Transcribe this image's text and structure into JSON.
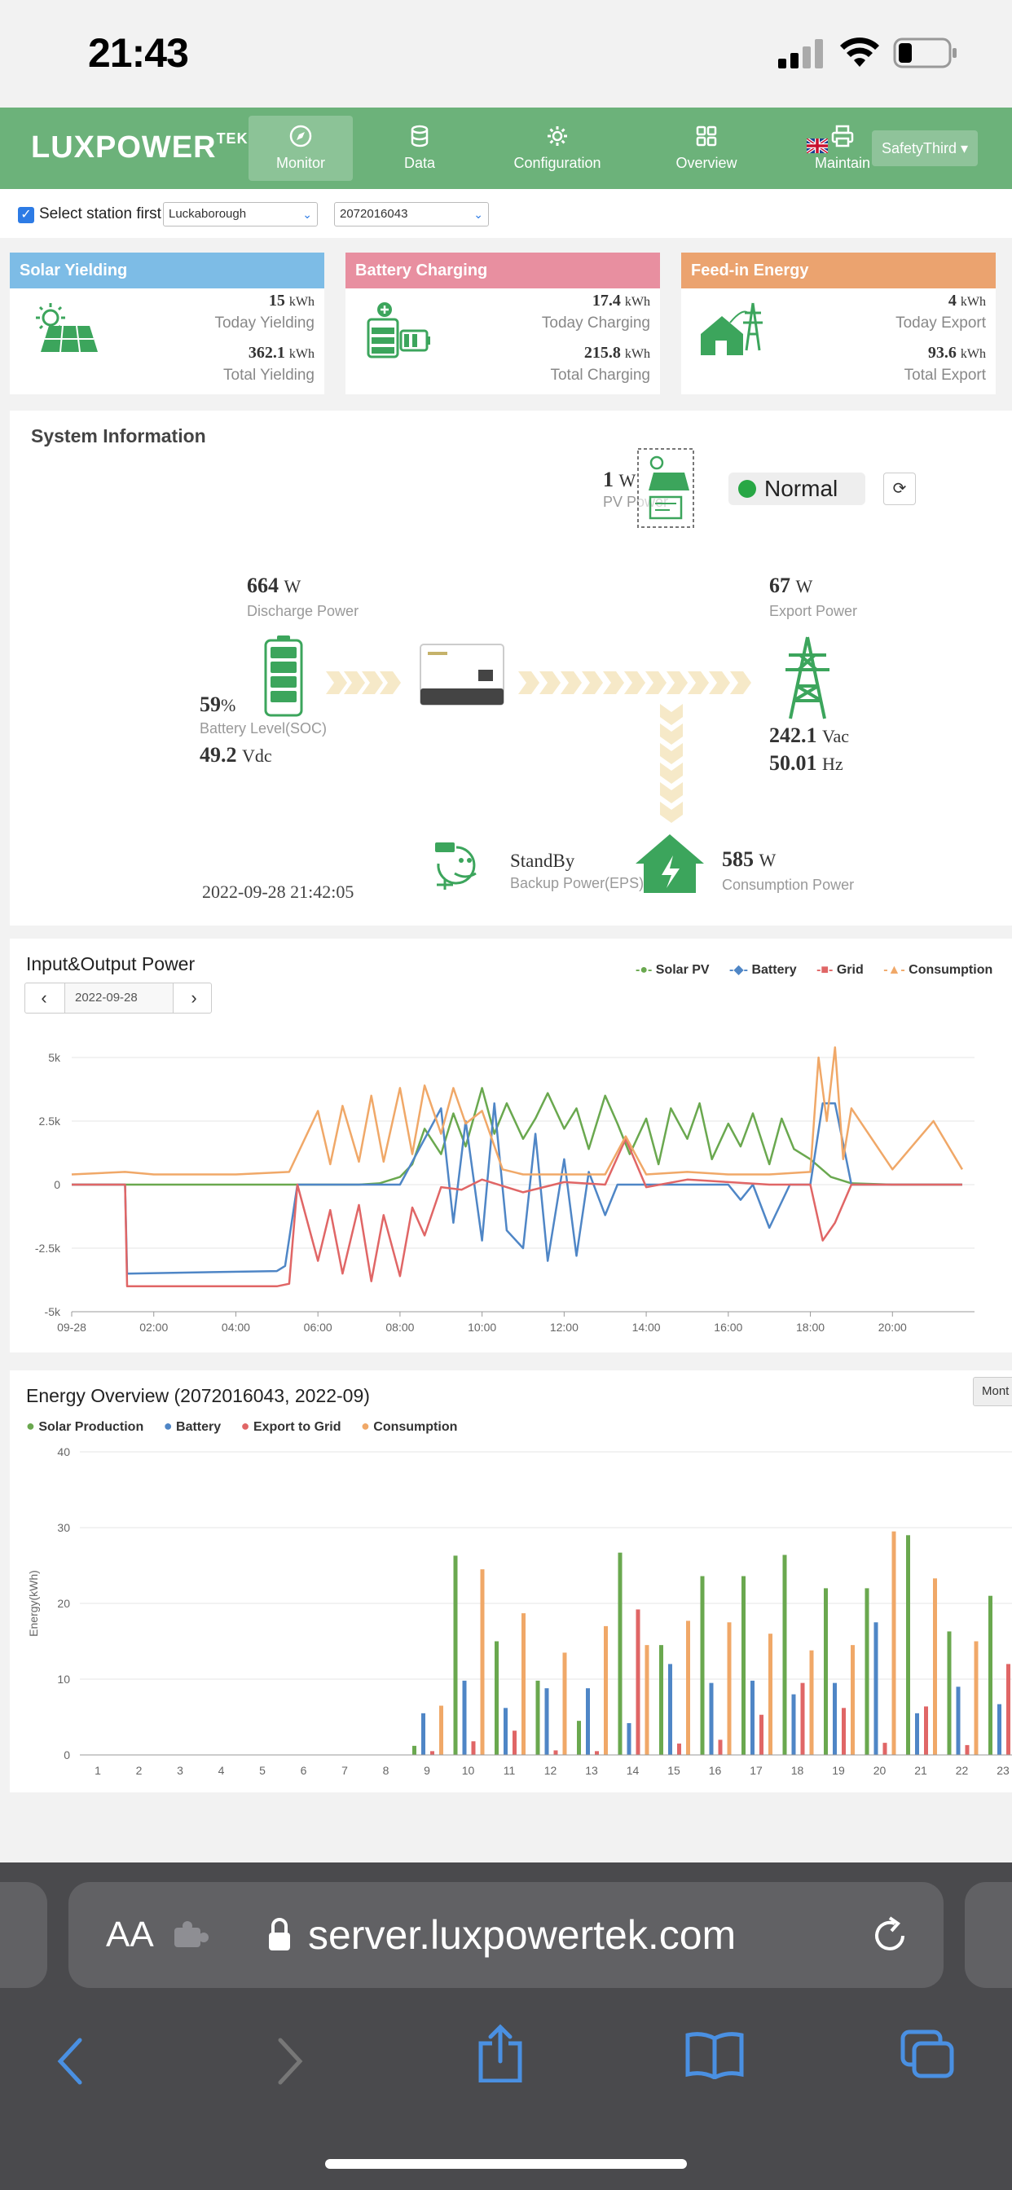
{
  "status_bar": {
    "time": "21:43"
  },
  "nav": {
    "logo": "LUXPOWER",
    "logo_sup": "TEK",
    "items": [
      {
        "label": "Monitor",
        "icon": "compass-icon"
      },
      {
        "label": "Data",
        "icon": "database-icon"
      },
      {
        "label": "Configuration",
        "icon": "gear-icon"
      },
      {
        "label": "Overview",
        "icon": "grid-icon"
      },
      {
        "label": "Maintain",
        "icon": "printer-icon"
      }
    ],
    "user": "SafetyThird"
  },
  "station": {
    "checkbox_label": "Select station first",
    "station_name": "Luckaborough",
    "serial": "2072016043"
  },
  "cards": {
    "solar": {
      "title": "Solar Yielding",
      "today_value": "15",
      "today_unit": "kWh",
      "today_label": "Today Yielding",
      "total_value": "362.1",
      "total_unit": "kWh",
      "total_label": "Total Yielding",
      "color": "#7dbce6"
    },
    "battery": {
      "title": "Battery Charging",
      "today_value": "17.4",
      "today_unit": "kWh",
      "today_label": "Today Charging",
      "total_value": "215.8",
      "total_unit": "kWh",
      "total_label": "Total Charging",
      "color": "#e88fa0"
    },
    "feedin": {
      "title": "Feed-in Energy",
      "today_value": "4",
      "today_unit": "kWh",
      "today_label": "Today Export",
      "total_value": "93.6",
      "total_unit": "kWh",
      "total_label": "Total Export",
      "color": "#eba36f"
    }
  },
  "system": {
    "title": "System Information",
    "pv_power_value": "1",
    "pv_power_unit": "W",
    "pv_power_label": "PV Power",
    "status": "Normal",
    "discharge_value": "664",
    "discharge_unit": "W",
    "discharge_label": "Discharge Power",
    "soc_value": "59",
    "soc_unit": "%",
    "soc_label": "Battery Level(SOC)",
    "vdc_value": "49.2",
    "vdc_unit": "Vdc",
    "export_value": "67",
    "export_unit": "W",
    "export_label": "Export Power",
    "vac_value": "242.1",
    "vac_unit": "Vac",
    "hz_value": "50.01",
    "hz_unit": "Hz",
    "eps_status": "StandBy",
    "eps_label": "Backup Power(EPS)",
    "consumption_value": "585",
    "consumption_unit": "W",
    "consumption_label": "Consumption Power",
    "timestamp": "2022-09-28 21:42:05"
  },
  "power_chart": {
    "title": "Input&Output Power",
    "date": "2022-09-28",
    "legend": [
      "Solar PV",
      "Battery",
      "Grid",
      "Consumption"
    ]
  },
  "energy_chart": {
    "title": "Energy Overview (2072016043, 2022-09)",
    "button": "Mont",
    "legend": [
      "Solar Production",
      "Battery",
      "Export to Grid",
      "Consumption"
    ]
  },
  "chart_data": [
    {
      "type": "line",
      "y_ticks": [
        "5k",
        "2.5k",
        "0",
        "-2.5k",
        "-5k"
      ],
      "x_ticks": [
        "09-28",
        "02:00",
        "04:00",
        "06:00",
        "08:00",
        "10:00",
        "12:00",
        "14:00",
        "16:00",
        "18:00",
        "20:00"
      ],
      "ylim": [
        -5000,
        5000
      ],
      "xlim": [
        0,
        22
      ],
      "series": [
        {
          "name": "Solar PV",
          "color": "#6aa84f",
          "x": [
            0,
            7,
            7.5,
            8,
            8.3,
            8.6,
            9,
            9.3,
            9.6,
            10,
            10.3,
            10.6,
            11,
            11.3,
            11.6,
            12,
            12.3,
            12.6,
            13,
            13.3,
            13.6,
            14,
            14.3,
            14.6,
            15,
            15.3,
            15.6,
            16,
            16.3,
            16.6,
            17,
            17.3,
            17.6,
            18,
            18.5,
            19,
            20,
            21,
            21.7
          ],
          "y": [
            0,
            0,
            50,
            300,
            800,
            2200,
            1200,
            2800,
            1500,
            3800,
            2000,
            3200,
            1800,
            2600,
            3600,
            2200,
            3000,
            1400,
            3500,
            2400,
            1200,
            2600,
            800,
            3000,
            1800,
            3200,
            1000,
            2400,
            1500,
            2800,
            800,
            2600,
            1400,
            1000,
            300,
            50,
            0,
            0,
            0
          ]
        },
        {
          "name": "Battery",
          "color": "#4f86c6",
          "x": [
            0,
            1.3,
            1.35,
            5,
            5.2,
            5.5,
            7.5,
            8,
            8.5,
            9,
            9.3,
            9.6,
            10,
            10.3,
            10.6,
            11,
            11.3,
            11.6,
            12,
            12.3,
            12.6,
            13,
            13.3,
            14,
            15,
            16,
            16.3,
            16.6,
            17,
            17.5,
            18,
            18.3,
            18.6,
            19,
            20,
            21,
            21.7
          ],
          "y": [
            0,
            0,
            -3500,
            -3400,
            -3200,
            0,
            0,
            0,
            1500,
            3000,
            -1500,
            2500,
            -2200,
            3200,
            -1800,
            -2500,
            2000,
            -3000,
            1000,
            -2800,
            500,
            -1200,
            0,
            0,
            0,
            0,
            -600,
            0,
            -1700,
            0,
            0,
            3200,
            3200,
            0,
            0,
            0,
            0
          ]
        },
        {
          "name": "Grid",
          "color": "#e06666",
          "x": [
            0,
            1.3,
            1.35,
            5,
            5.3,
            5.5,
            6,
            6.3,
            6.6,
            7,
            7.3,
            7.6,
            8,
            8.3,
            8.6,
            9,
            9.5,
            10,
            11,
            12,
            13,
            13.5,
            14,
            15,
            16,
            17,
            18,
            18.3,
            18.6,
            19,
            20,
            21,
            21.7
          ],
          "y": [
            0,
            0,
            -4000,
            -4000,
            -3900,
            0,
            -3000,
            -1000,
            -3500,
            -800,
            -3800,
            -1200,
            -3600,
            -900,
            -2000,
            -100,
            -200,
            200,
            -300,
            100,
            0,
            1800,
            -100,
            200,
            100,
            0,
            0,
            -2200,
            -1500,
            0,
            0,
            0,
            0
          ]
        },
        {
          "name": "Consumption",
          "color": "#f0a868",
          "x": [
            0,
            1.3,
            2,
            4,
            5.3,
            6,
            6.3,
            6.6,
            7,
            7.3,
            7.6,
            8,
            8.3,
            8.6,
            9,
            9.3,
            9.6,
            10,
            10.5,
            11,
            12,
            13,
            13.5,
            14,
            15,
            16,
            17,
            18,
            18.2,
            18.4,
            18.6,
            18.8,
            19,
            20,
            21,
            21.7
          ],
          "y": [
            400,
            500,
            400,
            400,
            500,
            2900,
            800,
            3100,
            900,
            3500,
            900,
            3800,
            1200,
            3900,
            2000,
            3800,
            2400,
            2900,
            600,
            400,
            400,
            400,
            1900,
            400,
            500,
            400,
            400,
            500,
            5000,
            2500,
            5400,
            1000,
            3000,
            600,
            2500,
            600
          ]
        }
      ]
    },
    {
      "type": "bar",
      "ylabel": "Energy(kWh)",
      "ylim": [
        0,
        40
      ],
      "y_ticks": [
        "40",
        "30",
        "20",
        "10",
        "0"
      ],
      "categories": [
        "1",
        "2",
        "3",
        "4",
        "5",
        "6",
        "7",
        "8",
        "9",
        "10",
        "11",
        "12",
        "13",
        "14",
        "15",
        "16",
        "17",
        "18",
        "19",
        "20",
        "21",
        "22",
        "23"
      ],
      "series": [
        {
          "name": "Solar Production",
          "color": "#6aa84f",
          "values": [
            0,
            0,
            0,
            0,
            0,
            0,
            0,
            0,
            1.2,
            26.3,
            15.0,
            9.8,
            4.5,
            26.7,
            14.5,
            23.6,
            23.6,
            26.4,
            22.0,
            22.0,
            29.0,
            16.3,
            21.0
          ]
        },
        {
          "name": "Battery",
          "color": "#4f86c6",
          "values": [
            0,
            0,
            0,
            0,
            0,
            0,
            0,
            0,
            5.5,
            9.8,
            6.2,
            8.8,
            8.8,
            4.2,
            12.0,
            9.5,
            9.8,
            8.0,
            9.5,
            17.5,
            5.5,
            9.0,
            6.7
          ]
        },
        {
          "name": "Export to Grid",
          "color": "#e06666",
          "values": [
            0,
            0,
            0,
            0,
            0,
            0,
            0,
            0,
            0.5,
            1.8,
            3.2,
            0.6,
            0.5,
            19.2,
            1.5,
            2.0,
            5.3,
            9.5,
            6.2,
            1.6,
            6.4,
            1.3,
            12.0
          ]
        },
        {
          "name": "Consumption",
          "color": "#f0a868",
          "values": [
            0,
            0,
            0,
            0,
            0,
            0,
            0,
            0,
            6.5,
            24.5,
            18.7,
            13.5,
            17.0,
            14.5,
            17.7,
            17.5,
            16.0,
            13.8,
            14.5,
            29.5,
            23.3,
            15.0,
            0
          ]
        }
      ]
    }
  ],
  "safari": {
    "aa": "AA",
    "url": "server.luxpowertek.com"
  }
}
